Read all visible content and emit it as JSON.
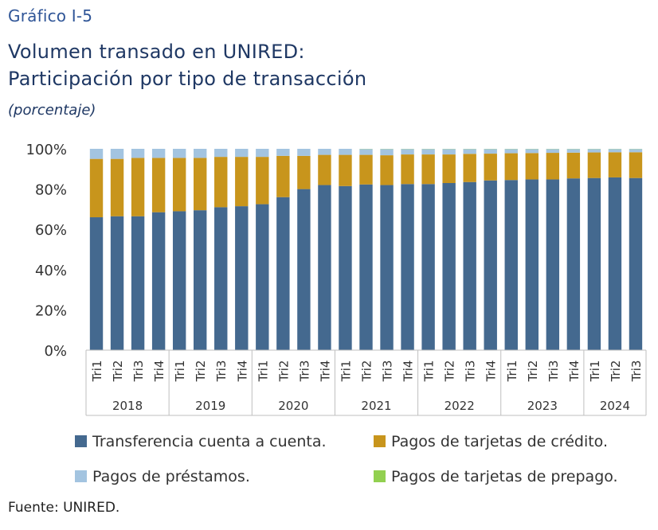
{
  "figure_label": "Gráfico I-5",
  "title_line1": "Volumen transado en UNIRED:",
  "title_line2": "Participación por tipo de transacción",
  "subtitle": "(porcentaje)",
  "source": "Fuente: UNIRED.",
  "chart_data": {
    "type": "bar",
    "stacked": true,
    "title": "Volumen transado en UNIRED: Participación por tipo de transacción",
    "ylabel": "",
    "xlabel": "",
    "ylim": [
      0,
      100
    ],
    "yticks": [
      "0%",
      "20%",
      "40%",
      "60%",
      "80%",
      "100%"
    ],
    "categories": [
      "Tri1",
      "Tri2",
      "Tri3",
      "Tri4",
      "Tri1",
      "Tri2",
      "Tri3",
      "Tri4",
      "Tri1",
      "Tri2",
      "Tri3",
      "Tri4",
      "Tri1",
      "Tri2",
      "Tri3",
      "Tri4",
      "Tri1",
      "Tri2",
      "Tri3",
      "Tri4",
      "Tri1",
      "Tri2",
      "Tri3",
      "Tri4",
      "Tri1",
      "Tri2",
      "Tri3"
    ],
    "years": [
      {
        "label": "2018",
        "count": 4
      },
      {
        "label": "2019",
        "count": 4
      },
      {
        "label": "2020",
        "count": 4
      },
      {
        "label": "2021",
        "count": 4
      },
      {
        "label": "2022",
        "count": 4
      },
      {
        "label": "2023",
        "count": 4
      },
      {
        "label": "2024",
        "count": 3
      }
    ],
    "series": [
      {
        "name": "Transferencia cuenta a cuenta.",
        "color": "#44698f",
        "values": [
          66,
          66.5,
          66.5,
          68.5,
          69,
          69.5,
          71,
          71.5,
          72.5,
          76,
          80,
          82,
          81.5,
          82.3,
          82,
          82.5,
          82.5,
          83,
          83.5,
          84.3,
          84.5,
          84.8,
          84.8,
          85.3,
          85.5,
          85.8,
          85.5
        ]
      },
      {
        "name": "Pagos de tarjetas de crédito.",
        "color": "#c8951c",
        "values": [
          29,
          28.5,
          29,
          27,
          26.5,
          26,
          25,
          24.5,
          23.5,
          20.5,
          16.5,
          15,
          15.5,
          14.7,
          14.8,
          14.7,
          14.7,
          14.2,
          14,
          13.3,
          13.3,
          13.1,
          13.2,
          12.8,
          12.7,
          12.5,
          12.8
        ]
      },
      {
        "name": "Pagos de préstamos.",
        "color": "#a3c4e0",
        "values": [
          5,
          5,
          4.5,
          4.5,
          4.5,
          4.5,
          4,
          4,
          4,
          3.5,
          3.5,
          3,
          3,
          2.9,
          3.1,
          2.7,
          2.7,
          2.7,
          2.4,
          2.3,
          2.1,
          2,
          1.9,
          1.8,
          1.7,
          1.6,
          1.6
        ]
      },
      {
        "name": "Pagos de tarjetas de prepago.",
        "color": "#92d050",
        "values": [
          0,
          0,
          0,
          0,
          0,
          0,
          0,
          0,
          0,
          0,
          0,
          0,
          0,
          0.1,
          0.1,
          0.1,
          0.1,
          0.1,
          0.1,
          0.1,
          0.1,
          0.1,
          0.1,
          0.1,
          0.1,
          0.1,
          0.1
        ]
      }
    ],
    "legend_position": "bottom",
    "grid": false
  }
}
